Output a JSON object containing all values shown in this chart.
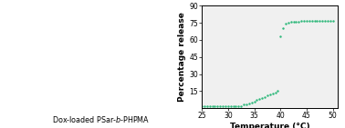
{
  "xlabel": "Temperature (°C)",
  "ylabel": "Percentage release",
  "xlim": [
    25,
    51
  ],
  "ylim": [
    0,
    90
  ],
  "yticks": [
    15,
    30,
    45,
    60,
    75,
    90
  ],
  "xticks": [
    25,
    30,
    35,
    40,
    45,
    50
  ],
  "marker_color": "#2eb87a",
  "markersize": 3.5,
  "data_x": [
    25.0,
    25.5,
    26.0,
    26.5,
    27.0,
    27.5,
    28.0,
    28.5,
    29.0,
    29.5,
    30.0,
    30.5,
    31.0,
    31.5,
    32.0,
    32.5,
    33.0,
    33.5,
    34.0,
    34.5,
    35.0,
    35.5,
    36.0,
    36.5,
    37.0,
    37.5,
    38.0,
    38.5,
    39.0,
    39.5,
    40.0,
    40.5,
    41.0,
    41.5,
    42.0,
    42.5,
    43.0,
    43.5,
    44.0,
    44.5,
    45.0,
    45.5,
    46.0,
    46.5,
    47.0,
    47.5,
    48.0,
    48.5,
    49.0,
    49.5,
    50.0
  ],
  "data_y": [
    2,
    2,
    2,
    2,
    2,
    2,
    2,
    2,
    2,
    2,
    2,
    2,
    2,
    2,
    2,
    2,
    3,
    3,
    4,
    5,
    6,
    7,
    8,
    9,
    10,
    11,
    12,
    13,
    14,
    15,
    63,
    70,
    74,
    75,
    76,
    76,
    76,
    76,
    77,
    77,
    77,
    77,
    77,
    77,
    77,
    77,
    77,
    77,
    77,
    77,
    77
  ],
  "background_color": "#f0f0f0",
  "label_fontsize": 6.5,
  "tick_fontsize": 5.5,
  "spine_linewidth": 0.7
}
